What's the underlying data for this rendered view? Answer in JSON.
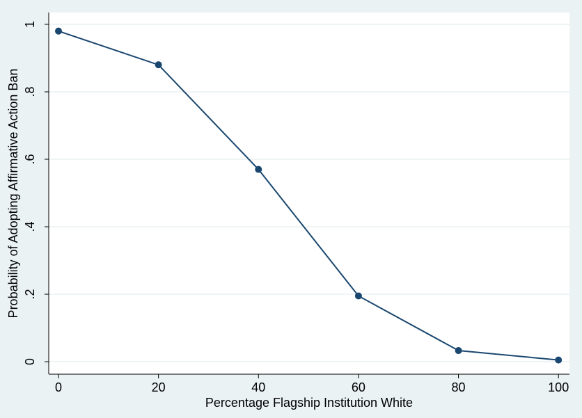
{
  "chart_data": {
    "type": "line",
    "x_label": "Percentage Flagship Institution White",
    "y_label": "Probability of Adopting Affirmative Action Ban",
    "x": [
      0,
      20,
      40,
      60,
      80,
      100
    ],
    "values": [
      0.98,
      0.88,
      0.57,
      0.195,
      0.033,
      0.005
    ],
    "color": "#1a476f",
    "xlim": [
      -1.95,
      102.2
    ],
    "ylim": [
      -0.037,
      1.035
    ],
    "xticks": [
      0,
      20,
      40,
      60,
      80,
      100
    ],
    "yticks": [
      0,
      {
        "value": 0.2,
        "label": ".2"
      },
      {
        "value": 0.4,
        "label": ".4"
      },
      {
        "value": 0.6,
        "label": ".6"
      },
      {
        "value": 0.8,
        "label": ".8"
      },
      1
    ],
    "grid": true,
    "markers": true
  }
}
